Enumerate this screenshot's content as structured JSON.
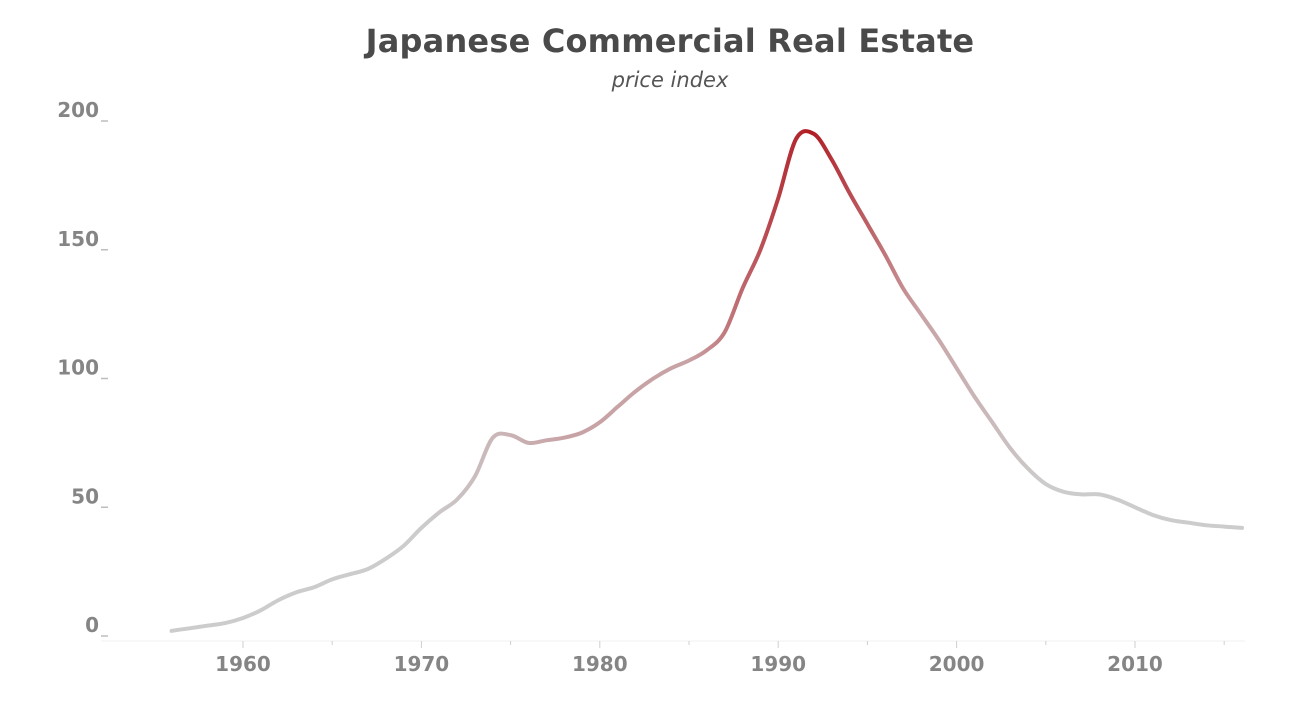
{
  "chart_data": {
    "type": "line",
    "title": "Japanese Commercial Real Estate",
    "subtitle": "price index",
    "xlabel": "",
    "ylabel": "",
    "xlim": [
      1955,
      2017
    ],
    "ylim": [
      0,
      200
    ],
    "x_ticks": [
      1960,
      1970,
      1980,
      1990,
      2000,
      2010
    ],
    "x_tick_labels": [
      "1960",
      "1970",
      "1980",
      "1990",
      "2000",
      "2010"
    ],
    "y_ticks": [
      0,
      50,
      100,
      150,
      200
    ],
    "y_tick_labels": [
      "0",
      "50",
      "100",
      "150",
      "200"
    ],
    "grid": false,
    "legend": "none",
    "line_color_gradient": [
      "#cccccc",
      "#c8a3a6",
      "#b01a22"
    ],
    "series": [
      {
        "x": [
          1956,
          1957,
          1958,
          1959,
          1960,
          1961,
          1962,
          1963,
          1964,
          1965,
          1966,
          1967,
          1968,
          1969,
          1970,
          1971,
          1972,
          1973,
          1974,
          1975,
          1976,
          1977,
          1978,
          1979,
          1980,
          1981,
          1982,
          1983,
          1984,
          1985,
          1986,
          1987,
          1988,
          1989,
          1990,
          1991,
          1992,
          1993,
          1994,
          1995,
          1996,
          1997,
          1998,
          1999,
          2000,
          2001,
          2002,
          2003,
          2004,
          2005,
          2006,
          2007,
          2008,
          2009,
          2010,
          2011,
          2012,
          2013,
          2014,
          2015,
          2016
        ],
        "values": [
          2,
          3,
          4,
          5,
          7,
          10,
          14,
          17,
          19,
          22,
          24,
          26,
          30,
          35,
          42,
          48,
          53,
          62,
          77,
          78,
          75,
          76,
          77,
          79,
          83,
          89,
          95,
          100,
          104,
          107,
          111,
          118,
          135,
          150,
          170,
          193,
          195,
          185,
          172,
          160,
          148,
          135,
          125,
          115,
          104,
          93,
          83,
          73,
          65,
          59,
          56,
          55,
          55,
          53,
          50,
          47,
          45,
          44,
          43,
          42.5,
          42
        ]
      }
    ]
  }
}
